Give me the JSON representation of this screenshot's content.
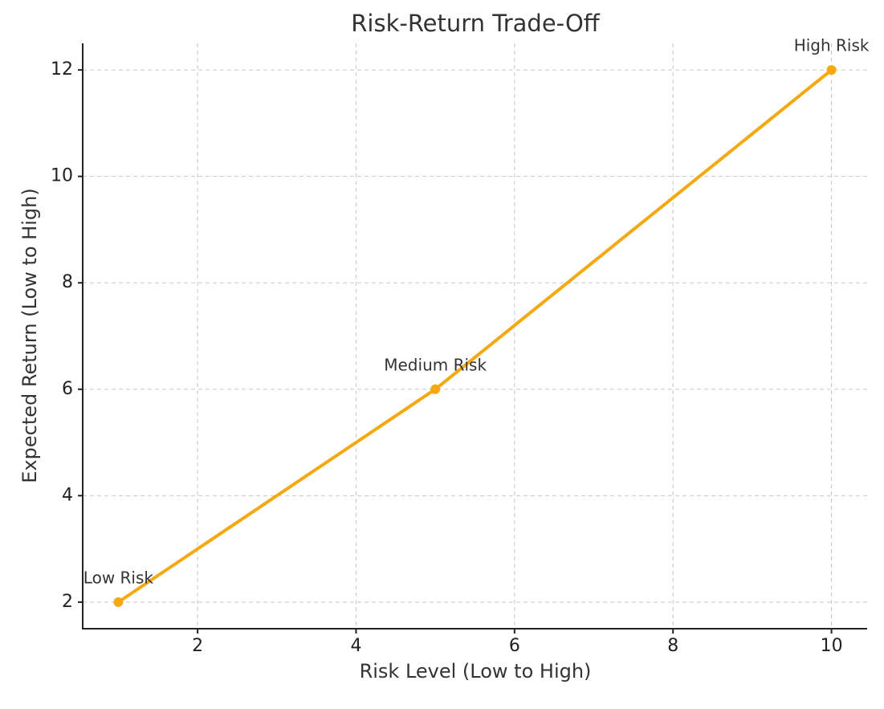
{
  "chart_data": {
    "type": "line",
    "title": "Risk-Return Trade-Off",
    "x_label": "Risk Level (Low to High)",
    "y_label": "Expected Return (Low to High)",
    "x": [
      1,
      5,
      10
    ],
    "values": [
      2,
      6,
      12
    ],
    "point_labels": [
      "Low Risk",
      "Medium Risk",
      "High Risk"
    ],
    "color": "#f5a80f",
    "xlim": [
      0.55,
      10.45
    ],
    "xticks": [
      2,
      4,
      6,
      8,
      10
    ],
    "ylim": [
      1.5,
      12.5
    ],
    "yticks": [
      2,
      4,
      6,
      8,
      10,
      12
    ],
    "grid": true
  }
}
